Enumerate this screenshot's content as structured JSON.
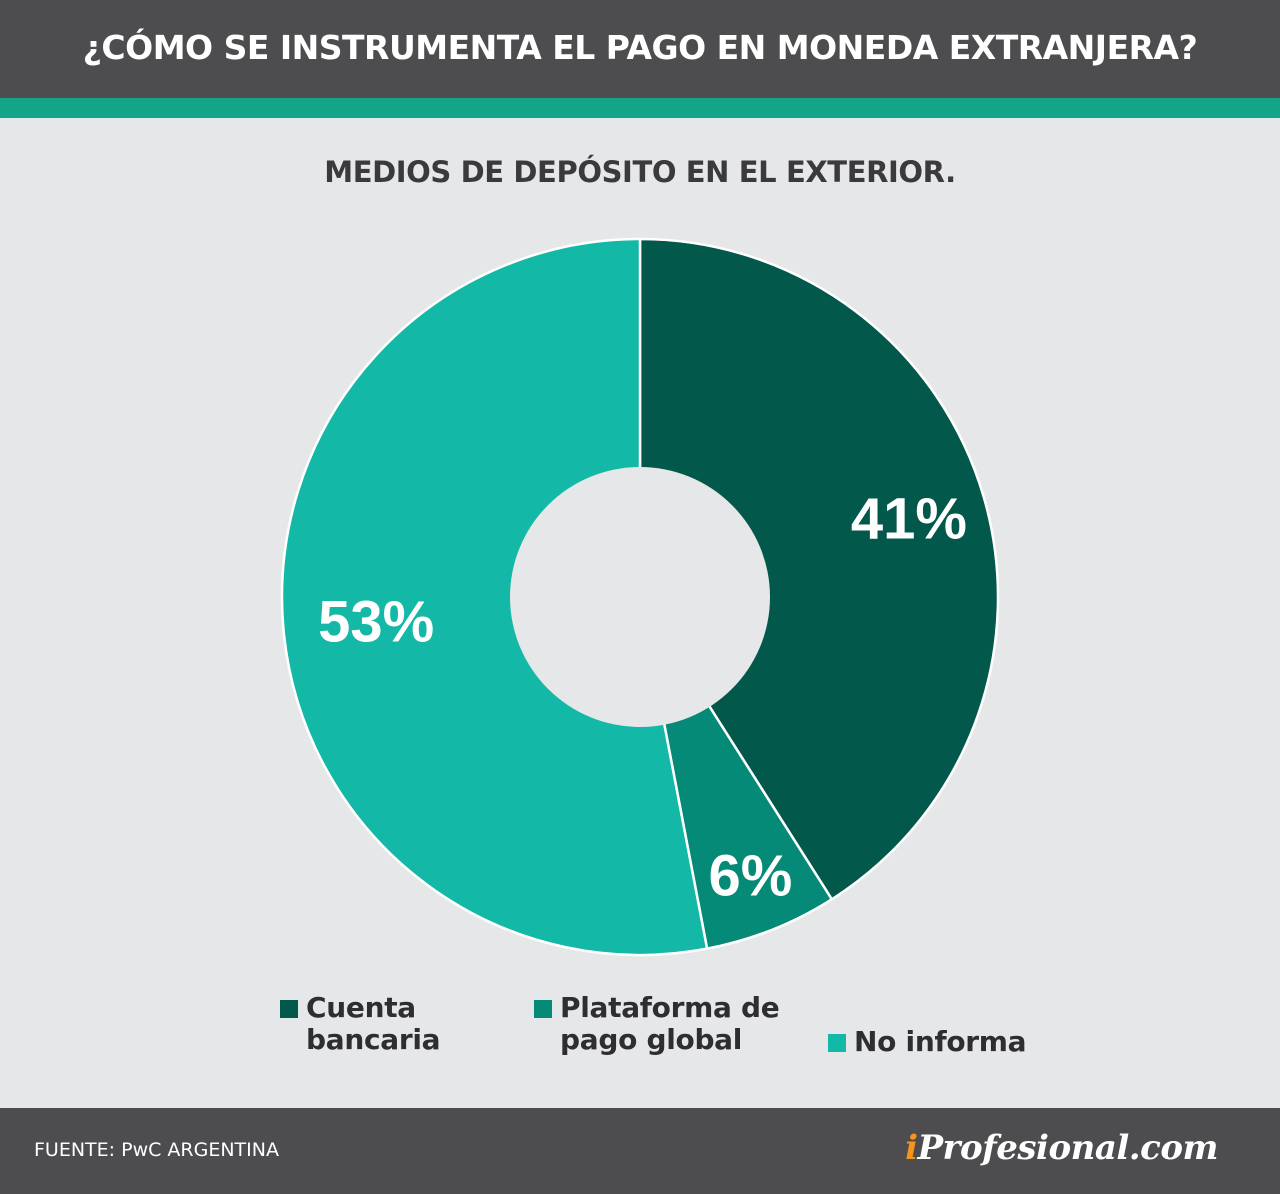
{
  "header": {
    "title": "¿CÓMO SE INSTRUMENTA EL PAGO EN MONEDA EXTRANJERA?"
  },
  "colors": {
    "header_bg": "#4d4d4f",
    "accent": "#14a589",
    "background": "#e6e7e8",
    "cuenta_bancaria": "#02584a",
    "plataforma": "#048a77",
    "no_informa": "#14b8a6"
  },
  "chart_data": {
    "type": "pie",
    "subtitle": "MEDIOS DE DEPÓSITO EN EL EXTERIOR.",
    "slices": [
      {
        "label": "Cuenta\nbancaria",
        "value": 41,
        "value_label": "41%",
        "color": "#02584a"
      },
      {
        "label": "Plataforma de\npago global",
        "value": 6,
        "value_label": "6%",
        "color": "#048a77"
      },
      {
        "label": "No informa",
        "value": 53,
        "value_label": "53%",
        "color": "#14b8a6"
      }
    ],
    "donut": true,
    "legend_position": "bottom"
  },
  "footer": {
    "source": "FUENTE: PwC ARGENTINA",
    "logo_i": "i",
    "logo_rest": "Profesional.com"
  }
}
